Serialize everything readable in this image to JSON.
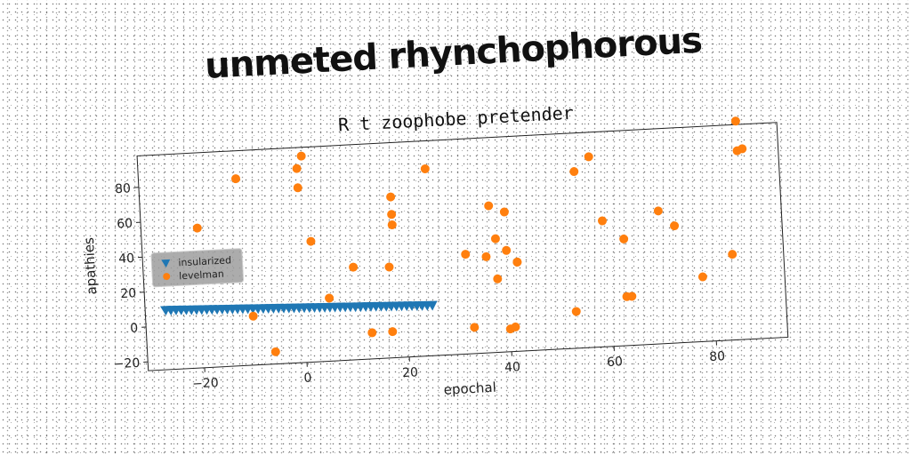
{
  "main_title": "unmeted rhynchophorous",
  "chart_data": {
    "type": "scatter",
    "title": "R t zoophobe pretender",
    "xlabel": "epochal",
    "ylabel": "apathies",
    "xlim": [
      -31,
      94
    ],
    "ylim": [
      -25,
      98
    ],
    "xticks": [
      -20,
      0,
      20,
      40,
      60,
      80
    ],
    "yticks": [
      -20,
      0,
      20,
      40,
      60,
      80
    ],
    "grid": false,
    "legend_position": "center-left",
    "series": [
      {
        "name": "insularized",
        "marker": "triangle-down",
        "color": "#1f77b4",
        "x": [
          -27,
          -26,
          -25,
          -24,
          -23,
          -22,
          -21,
          -20,
          -19,
          -18,
          -17,
          -16,
          -15,
          -14,
          -13,
          -12,
          -11,
          -10,
          -9,
          -8,
          -7,
          -6,
          -5,
          -4,
          -3,
          -2,
          -1,
          0,
          1,
          2,
          3,
          4,
          5,
          6,
          7,
          8,
          9,
          10,
          11,
          12,
          13,
          14,
          15,
          16,
          17,
          18,
          19,
          20,
          21,
          22,
          23,
          24,
          25
        ],
        "y": [
          9,
          8.9,
          8.8,
          8.7,
          8.6,
          8.5,
          8.4,
          8.3,
          8.2,
          8.1,
          8,
          7.9,
          7.8,
          7.7,
          7.6,
          7.5,
          7.4,
          7.3,
          7.2,
          7.1,
          7,
          6.9,
          6.8,
          6.7,
          6.6,
          6.5,
          6.4,
          6.3,
          6.2,
          6.1,
          6,
          5.9,
          5.8,
          5.7,
          5.6,
          5.5,
          5.4,
          5.3,
          5.2,
          5.1,
          5,
          4.9,
          4.8,
          4.7,
          4.6,
          4.5,
          4.4,
          4.3,
          4.2,
          4.1,
          4,
          3.9,
          3.8
        ]
      },
      {
        "name": "levelman",
        "marker": "circle",
        "color": "#ff7f0e",
        "x": [
          -20,
          -12,
          -10,
          -6,
          0,
          0,
          1,
          2,
          5,
          10,
          13,
          17,
          17,
          18,
          18,
          18,
          25,
          32,
          33,
          36,
          37,
          38,
          38,
          40,
          40,
          40,
          41,
          42,
          42,
          53,
          54,
          57,
          59,
          63,
          63,
          64,
          70,
          73,
          78,
          84,
          86,
          86,
          87
        ],
        "y": [
          55,
          82,
          3,
          -18,
          86,
          75,
          93,
          44,
          11,
          28,
          -10,
          -10,
          27,
          67,
          57,
          51,
          82,
          32,
          -10,
          30,
          59,
          40,
          17,
          55,
          33,
          -12,
          -11,
          26,
          26,
          -4,
          76,
          84,
          47,
          36,
          3,
          3,
          51,
          42,
          12,
          24,
          83,
          100,
          84
        ]
      }
    ]
  }
}
